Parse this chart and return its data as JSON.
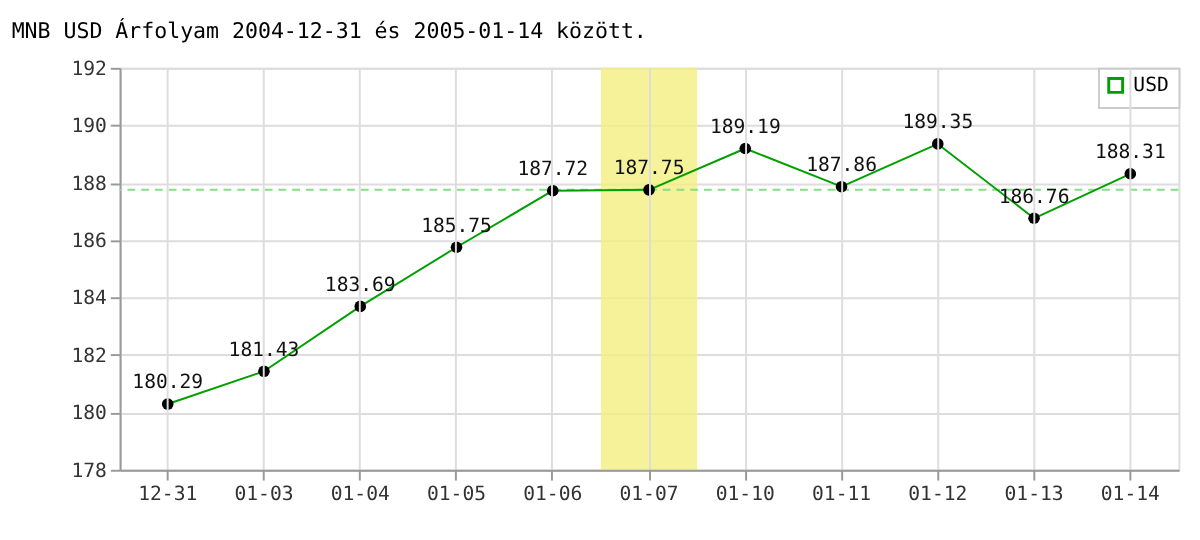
{
  "chart_data": {
    "type": "line",
    "title": "MNB USD Árfolyam 2004-12-31 és 2005-01-14 között.",
    "categories": [
      "12-31",
      "01-03",
      "01-04",
      "01-05",
      "01-06",
      "01-07",
      "01-10",
      "01-11",
      "01-12",
      "01-13",
      "01-14"
    ],
    "series": [
      {
        "name": "USD",
        "color": "#00a000",
        "values": [
          180.29,
          181.43,
          183.69,
          185.75,
          187.72,
          187.75,
          189.19,
          187.86,
          189.35,
          186.76,
          188.31
        ]
      }
    ],
    "ylim": [
      178,
      192
    ],
    "yticks": [
      178,
      180,
      182,
      184,
      186,
      188,
      190,
      192
    ],
    "grid": true,
    "legend": "top right",
    "marker": "circle",
    "line_style": "solid",
    "data_labels": true,
    "ref_lines": [
      {
        "axis": "y",
        "value": 187.75,
        "color": "#88dd88",
        "line_style": "dashed"
      }
    ],
    "bands": [
      {
        "axis": "x",
        "from": "01-07",
        "to": "01-07",
        "color": "#f3ef80"
      }
    ]
  }
}
